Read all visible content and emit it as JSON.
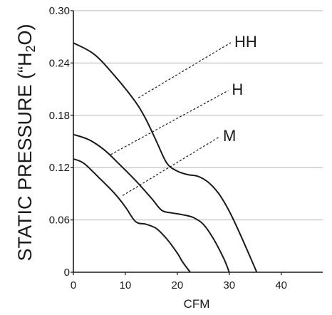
{
  "chart_data": {
    "type": "line",
    "title": "",
    "xlabel": "CFM",
    "ylabel": {
      "main": "STATIC PRESSURE (“H",
      "sub": "2",
      "tail": "O)"
    },
    "xlim": [
      0,
      48
    ],
    "ylim": [
      0,
      0.3
    ],
    "x_ticks": [
      0,
      10,
      20,
      30,
      40
    ],
    "x_tick_labels": [
      "0",
      "10",
      "20",
      "30",
      "40"
    ],
    "y_ticks": [
      0,
      0.06,
      0.12,
      0.18,
      0.24,
      0.3
    ],
    "y_tick_labels": [
      "0",
      "0.06",
      "0.12",
      "0.18",
      "0.24",
      "0.30"
    ],
    "grid": "horizontal",
    "series": [
      {
        "name": "HH",
        "x": [
          0,
          4,
          8,
          12,
          14,
          16,
          18,
          20,
          22,
          24,
          26,
          28,
          30,
          32,
          34,
          35.3
        ],
        "y": [
          0.263,
          0.25,
          0.225,
          0.195,
          0.175,
          0.15,
          0.125,
          0.116,
          0.112,
          0.11,
          0.103,
          0.09,
          0.07,
          0.045,
          0.018,
          0
        ]
      },
      {
        "name": "H",
        "x": [
          0,
          3,
          6,
          9,
          12,
          15,
          17,
          19,
          21,
          23,
          25,
          27,
          29,
          30
        ],
        "y": [
          0.158,
          0.152,
          0.14,
          0.123,
          0.105,
          0.085,
          0.071,
          0.068,
          0.066,
          0.063,
          0.055,
          0.038,
          0.015,
          0
        ]
      },
      {
        "name": "M",
        "x": [
          0,
          2,
          5,
          8,
          10,
          12,
          14,
          16,
          18,
          20,
          21,
          22.5
        ],
        "y": [
          0.13,
          0.125,
          0.108,
          0.09,
          0.075,
          0.058,
          0.055,
          0.05,
          0.038,
          0.022,
          0.012,
          0
        ]
      }
    ],
    "annotations": [
      {
        "text": "HH",
        "series": "HH",
        "anchor_x": 12.5,
        "anchor_y": 0.2,
        "label_x": 31,
        "label_y": 0.265
      },
      {
        "text": "H",
        "series": "H",
        "anchor_x": 7.2,
        "anchor_y": 0.135,
        "label_x": 30.5,
        "label_y": 0.21
      },
      {
        "text": "M",
        "series": "M",
        "anchor_x": 9.5,
        "anchor_y": 0.088,
        "label_x": 28.8,
        "label_y": 0.157
      }
    ],
    "colors": {
      "line": "#1a1a1a",
      "grid": "#b5b5b5",
      "background": "#ffffff"
    }
  }
}
